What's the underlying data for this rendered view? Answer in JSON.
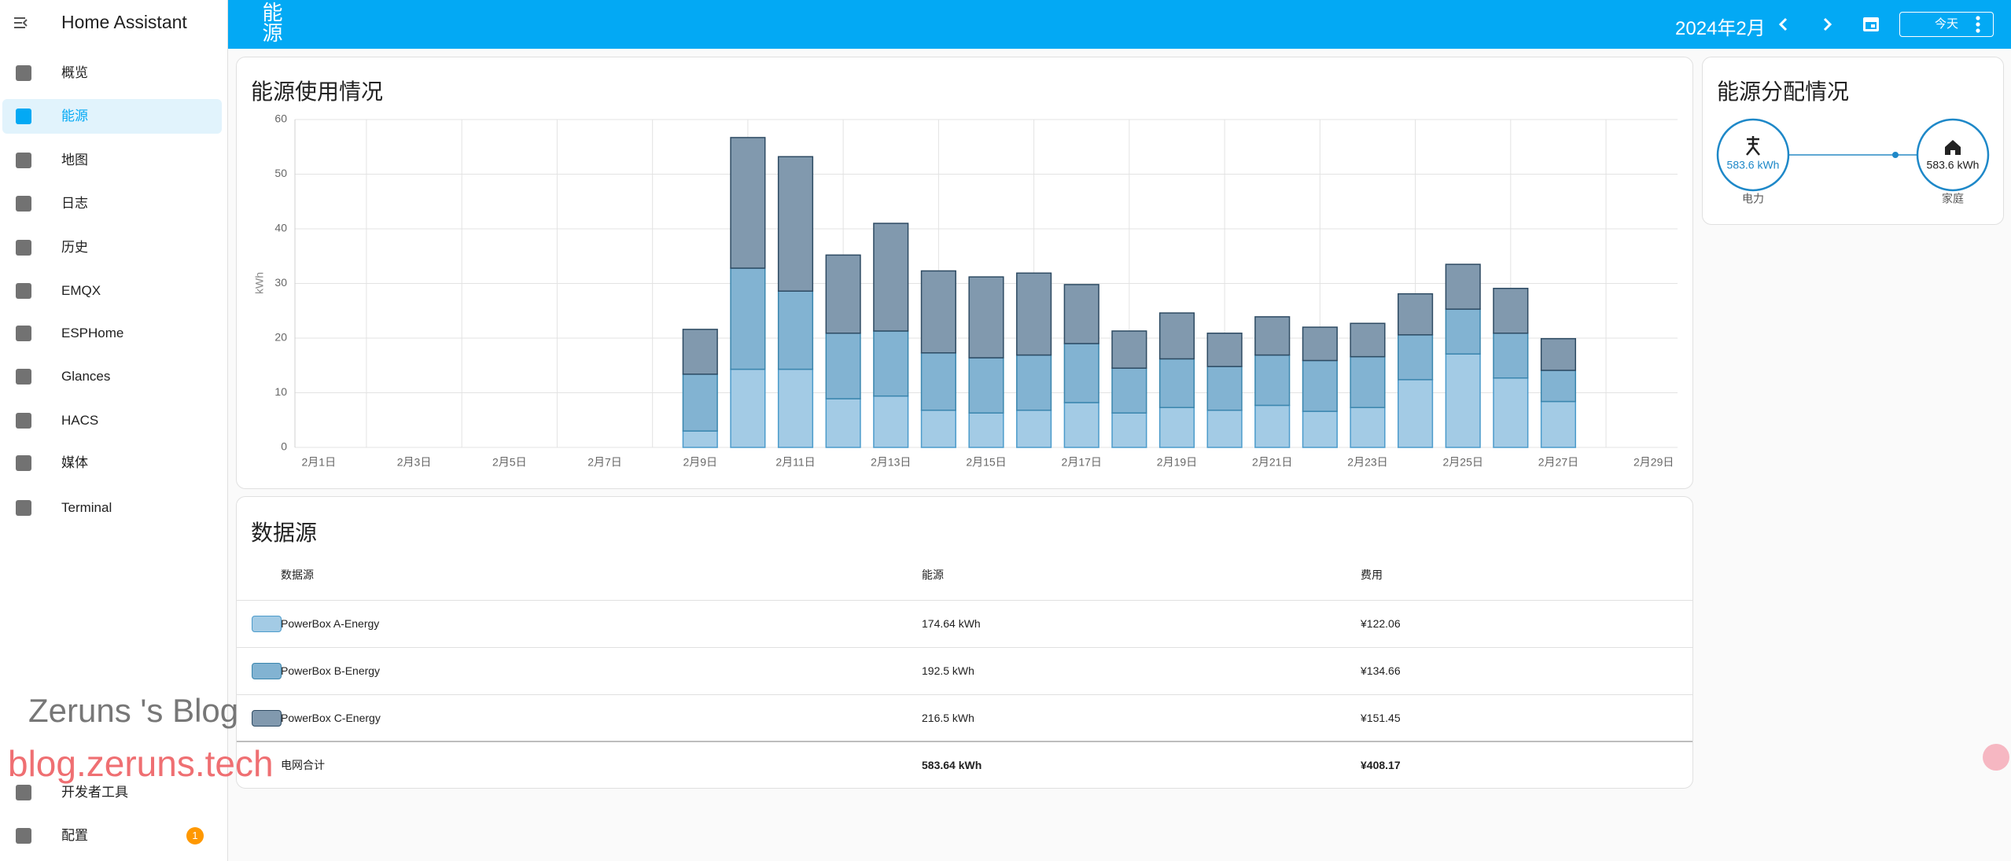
{
  "app_title": "Home Assistant",
  "sidebar": {
    "items": [
      "概览",
      "能源",
      "地图",
      "日志",
      "历史",
      "EMQX",
      "ESPHome",
      "Glances",
      "HACS",
      "媒体",
      "Terminal"
    ],
    "bottom": [
      "开发者工具",
      "配置"
    ],
    "badge": "1"
  },
  "header": {
    "title": "能源",
    "period": "2024年2月",
    "today": "今天"
  },
  "watermark": {
    "line1": "Zeruns 's Blog",
    "line2": "blog.zeruns.tech"
  },
  "chart_data": {
    "type": "bar",
    "stacked": true,
    "title": "能源使用情况",
    "y_label": "kWh",
    "categories": [
      "2月1日",
      null,
      "2月3日",
      null,
      "2月5日",
      null,
      "2月7日",
      null,
      "2月9日",
      null,
      "2月11日",
      null,
      "2月13日",
      null,
      "2月15日",
      null,
      "2月17日",
      null,
      "2月19日",
      null,
      "2月21日",
      null,
      "2月23日",
      null,
      "2月25日",
      null,
      "2月27日",
      null,
      "2月29日"
    ],
    "series": [
      {
        "name": "PowerBox A-Energy",
        "color": "#a3cbe5",
        "values": [
          null,
          null,
          null,
          null,
          null,
          null,
          null,
          null,
          3.0,
          14.3,
          14.3,
          8.9,
          9.4,
          6.8,
          6.3,
          6.8,
          8.2,
          6.3,
          7.3,
          6.8,
          7.7,
          6.6,
          7.3,
          12.4,
          17.1,
          12.7,
          8.4,
          null,
          null
        ]
      },
      {
        "name": "PowerBox B-Energy",
        "color": "#82b3d2",
        "values": [
          null,
          null,
          null,
          null,
          null,
          null,
          null,
          null,
          10.4,
          18.5,
          14.3,
          12.0,
          11.9,
          10.5,
          10.1,
          10.1,
          10.8,
          8.2,
          8.9,
          8.0,
          9.2,
          9.3,
          9.3,
          8.2,
          8.2,
          8.2,
          5.7,
          null,
          null
        ]
      },
      {
        "name": "PowerBox C-Energy",
        "color": "#8199ae",
        "values": [
          null,
          null,
          null,
          null,
          null,
          null,
          null,
          null,
          8.2,
          23.9,
          24.6,
          14.3,
          19.7,
          15.0,
          14.8,
          15.0,
          10.8,
          6.8,
          8.4,
          6.1,
          7.0,
          6.1,
          6.1,
          7.5,
          8.2,
          8.2,
          5.8,
          null,
          null
        ]
      }
    ],
    "ylim": [
      0,
      60
    ],
    "yticks": [
      0,
      10,
      20,
      30,
      40,
      50,
      60
    ],
    "grid": true
  },
  "distribution": {
    "title": "能源分配情况",
    "grid": {
      "value": "583.6 kWh",
      "label": "电力"
    },
    "home": {
      "value": "583.6 kWh",
      "label": "家庭"
    }
  },
  "table": {
    "title": "数据源",
    "columns": [
      "数据源",
      "能源",
      "费用"
    ],
    "rows": [
      [
        "PowerBox A-Energy",
        "174.64 kWh",
        "¥122.06"
      ],
      [
        "PowerBox B-Energy",
        "192.5 kWh",
        "¥134.66"
      ],
      [
        "PowerBox C-Energy",
        "216.5 kWh",
        "¥151.45"
      ]
    ],
    "total": [
      "电网合计",
      "583.64 kWh",
      "¥408.17"
    ]
  }
}
